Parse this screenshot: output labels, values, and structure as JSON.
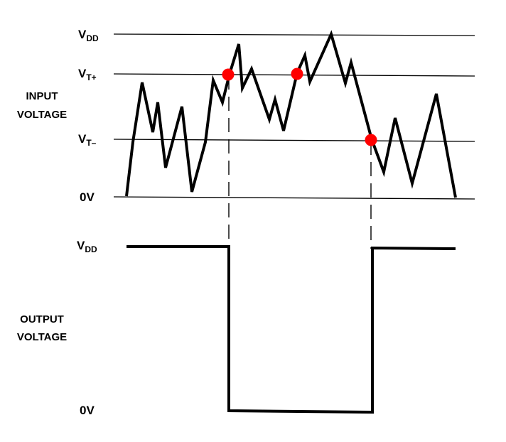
{
  "levels": {
    "vdd_main": "V",
    "vdd_sub": "DD",
    "vtplus_main": "V",
    "vtplus_sub": "T+",
    "vtminus_main": "V",
    "vtminus_sub": "T–",
    "zero_input": "0V",
    "vdd_out_main": "V",
    "vdd_out_sub": "DD",
    "zero_output": "0V"
  },
  "sections": {
    "input_line1": "INPUT",
    "input_line2": "VOLTAGE",
    "output_line1": "OUTPUT",
    "output_line2": "VOLTAGE"
  },
  "colors": {
    "signal": "#000000",
    "reference_lines": "#000000",
    "crossing_markers": "#ff0000"
  }
}
